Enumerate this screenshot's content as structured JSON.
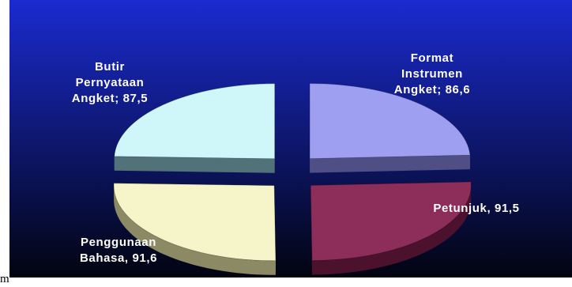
{
  "page": {
    "stray_text": "m"
  },
  "chart_data": {
    "type": "pie",
    "style": "3d-exploded",
    "background": {
      "top": "#1a2bd0",
      "bottom": "#020410"
    },
    "categories": [
      "Format Instrumen Angket",
      "Petunjuk",
      "Penggunaan Bahasa",
      "Butir Pernyataan Angket"
    ],
    "values": [
      86.6,
      91.5,
      91.6,
      87.5
    ],
    "slices": [
      {
        "name": "Format Instrumen Angket",
        "value": 86.6,
        "label_lines": [
          "Format",
          "Instrumen",
          "Angket; 86,6"
        ],
        "color": "#9f9ff2",
        "side_color": "#4f4f86"
      },
      {
        "name": "Petunjuk",
        "value": 91.5,
        "label_lines": [
          "Petunjuk, 91,5"
        ],
        "color": "#8d2d5a",
        "side_color": "#4c122d"
      },
      {
        "name": "Penggunaan Bahasa",
        "value": 91.6,
        "label_lines": [
          "Penggunaan",
          "Bahasa, 91,6"
        ],
        "color": "#f6f5c9",
        "side_color": "#8b8a64"
      },
      {
        "name": "Butir Pernyataan Angket",
        "value": 87.5,
        "label_lines": [
          "Butir",
          "Pernyataan",
          "Angket; 87,5"
        ],
        "color": "#cff7fa",
        "side_color": "#52727a"
      }
    ]
  }
}
